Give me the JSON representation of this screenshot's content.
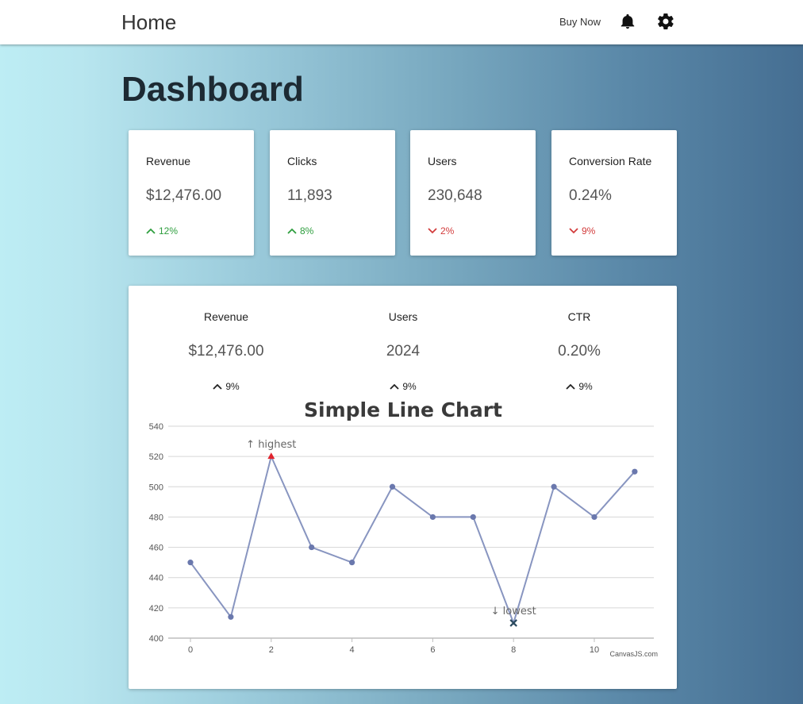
{
  "nav": {
    "title": "Home",
    "buy_now": "Buy Now",
    "icons": [
      "bell-icon",
      "gear-icon"
    ]
  },
  "page": {
    "title": "Dashboard"
  },
  "cards": [
    {
      "label": "Revenue",
      "value": "$12,476.00",
      "delta": "12%",
      "trend": "up"
    },
    {
      "label": "Clicks",
      "value": "11,893",
      "delta": "8%",
      "trend": "up"
    },
    {
      "label": "Users",
      "value": "230,648",
      "delta": "2%",
      "trend": "down"
    },
    {
      "label": "Conversion Rate",
      "value": "0.24%",
      "delta": "9%",
      "trend": "down"
    }
  ],
  "panel": {
    "stats": [
      {
        "label": "Revenue",
        "value": "$12,476.00",
        "delta": "9%"
      },
      {
        "label": "Users",
        "value": "2024",
        "delta": "9%"
      },
      {
        "label": "CTR",
        "value": "0.20%",
        "delta": "9%"
      }
    ]
  },
  "colors": {
    "up": "#2e9e3e",
    "down": "#d23c3c",
    "line": "#8895c0",
    "marker": "#6a78ad",
    "highest_marker": "#e0242e",
    "lowest_marker": "#2b4a5e"
  },
  "chart_data": {
    "type": "line",
    "title": "Simple Line Chart",
    "x": [
      0,
      1,
      2,
      3,
      4,
      5,
      6,
      7,
      8,
      9,
      10,
      11
    ],
    "values": [
      450,
      414,
      520,
      460,
      450,
      500,
      480,
      480,
      410,
      500,
      480,
      510
    ],
    "ylim": [
      400,
      540
    ],
    "yticks": [
      400,
      420,
      440,
      460,
      480,
      500,
      520,
      540
    ],
    "xticks": [
      0,
      2,
      4,
      6,
      8,
      10
    ],
    "annotations": [
      {
        "index": 2,
        "label": "↑ highest"
      },
      {
        "index": 8,
        "label": "↓ lowest"
      }
    ],
    "credit": "CanvasJS.com",
    "grid": true
  }
}
